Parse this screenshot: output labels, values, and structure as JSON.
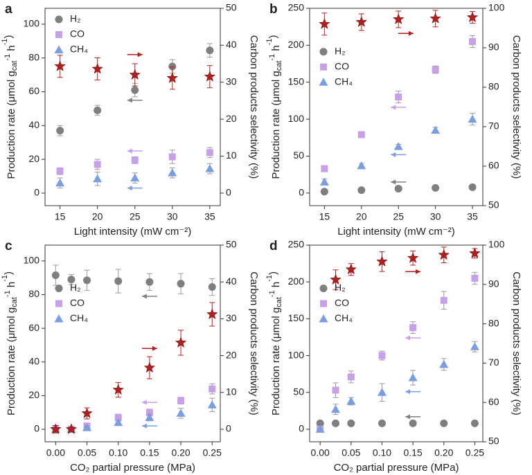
{
  "chart_data": [
    {
      "type": "scatter",
      "panel": "a",
      "xlabel": "Light intensity (mW cm⁻²)",
      "ylabel": [
        "Production rate  (μmol g",
        "cat",
        "-1",
        " h",
        "-1",
        ")"
      ],
      "y2label": "Carbon products selectivity (%)",
      "x": [
        15,
        20,
        25,
        30,
        35
      ],
      "xlim": [
        13,
        36.4
      ],
      "xticks": [
        15,
        20,
        25,
        30,
        35
      ],
      "ylim": [
        -7.4,
        109.4
      ],
      "yticks": [
        0,
        20,
        40,
        60,
        80,
        100
      ],
      "y2lim": [
        -3.4,
        50
      ],
      "y2ticks": [
        0,
        10,
        20,
        30,
        40,
        50
      ],
      "legend": "upper left",
      "series": [
        {
          "name": "H₂",
          "color": "#7f7f7f",
          "marker": "circle",
          "values": [
            37,
            49,
            61,
            75,
            84.5
          ],
          "errors": [
            3,
            3,
            4,
            4,
            4
          ]
        },
        {
          "name": "CO",
          "color": "#c7a0ea",
          "marker": "square",
          "values": [
            13,
            17,
            19.5,
            21.5,
            24
          ],
          "errors": [
            2,
            3,
            2,
            4,
            3
          ]
        },
        {
          "name": "CH₄",
          "color": "#7b9de2",
          "marker": "triangle",
          "values": [
            6,
            8.5,
            9,
            12,
            14.5
          ],
          "errors": [
            3,
            4,
            3,
            3,
            3
          ]
        },
        {
          "color": "#b0201e",
          "marker": "star",
          "axis": "y2",
          "values": [
            34.3,
            33.6,
            32,
            31.1,
            31.5
          ],
          "errors": [
            3,
            3,
            3,
            3,
            3
          ]
        }
      ]
    },
    {
      "type": "scatter",
      "panel": "b",
      "xlabel": "Light intensity (mW cm⁻²)",
      "ylabel": [
        "Production rate  (μmol g",
        "cat",
        "-1",
        " h",
        "-1",
        ")"
      ],
      "y2label": "Carbon products selectivity (%)",
      "x": [
        15,
        20,
        25,
        30,
        35
      ],
      "xlim": [
        13,
        36.4
      ],
      "xticks": [
        15,
        20,
        25,
        30,
        35
      ],
      "ylim": [
        -17,
        250
      ],
      "yticks": [
        0,
        50,
        100,
        150,
        200,
        250
      ],
      "y2lim": [
        50,
        100
      ],
      "y2ticks": [
        50,
        60,
        70,
        80,
        90,
        100
      ],
      "legend": "center left",
      "series": [
        {
          "name": "H₂",
          "color": "#7f7f7f",
          "marker": "circle",
          "values": [
            2,
            4,
            6,
            7,
            8
          ],
          "errors": [
            1,
            1,
            1,
            1,
            1
          ]
        },
        {
          "name": "CO",
          "color": "#c7a0ea",
          "marker": "square",
          "values": [
            33,
            79,
            130,
            167,
            205
          ],
          "errors": [
            4,
            4,
            8,
            5,
            8
          ]
        },
        {
          "name": "CH₄",
          "color": "#7b9de2",
          "marker": "triangle",
          "values": [
            15,
            37,
            63,
            85,
            100
          ],
          "errors": [
            4,
            3,
            3,
            4,
            8
          ]
        },
        {
          "color": "#b0201e",
          "marker": "star",
          "axis": "y2",
          "values": [
            96,
            96.5,
            97.2,
            97.4,
            97.7
          ],
          "errors": [
            2.8,
            2.1,
            2.1,
            2.1,
            1.5
          ]
        }
      ]
    },
    {
      "type": "scatter",
      "panel": "c",
      "xlabel": "CO₂ partial pressure (MPa)",
      "ylabel": [
        "Production rate  (μmol g",
        "cat",
        "-1",
        " h",
        "-1",
        ")"
      ],
      "y2label": "Carbon products selectivity (%)",
      "x": [
        0,
        0.025,
        0.05,
        0.1,
        0.15,
        0.2,
        0.25
      ],
      "xlim": [
        -0.017,
        0.263
      ],
      "xticks": [
        {
          "value": 0,
          "label": "0.00"
        },
        0.05,
        {
          "value": 0.1,
          "label": "0.10"
        },
        0.15,
        {
          "value": 0.2,
          "label": "0.20"
        },
        0.25
      ],
      "ylim": [
        -7.4,
        109.4
      ],
      "yticks": [
        0,
        20,
        40,
        60,
        80,
        100
      ],
      "y2lim": [
        -3.4,
        50
      ],
      "y2ticks": [
        0,
        10,
        20,
        30,
        40,
        50
      ],
      "legend": "center left",
      "series": [
        {
          "name": "H₂",
          "color": "#7f7f7f",
          "marker": "circle",
          "values": [
            91.5,
            89,
            88.5,
            88,
            87.5,
            86.5,
            84.5
          ],
          "errors": [
            6,
            3,
            6,
            7,
            5,
            6,
            5
          ]
        },
        {
          "name": "CO",
          "color": "#c7a0ea",
          "marker": "square",
          "values": [
            0.5,
            0,
            2,
            7,
            10,
            17,
            24
          ],
          "errors": [
            1,
            1,
            1,
            2,
            2,
            2,
            3
          ]
        },
        {
          "name": "CH₄",
          "color": "#7b9de2",
          "marker": "triangle",
          "values": [
            0,
            0,
            1,
            4,
            7,
            9.5,
            14.5
          ],
          "errors": [
            0.5,
            0.5,
            1,
            1,
            2,
            3,
            4
          ]
        },
        {
          "color": "#b0201e",
          "marker": "star",
          "axis": "y2",
          "values": [
            0,
            0,
            4.3,
            10.7,
            16.7,
            23.5,
            31.2
          ],
          "errors": [
            1,
            0.5,
            1.5,
            2,
            3,
            3.4,
            3.2
          ]
        }
      ]
    },
    {
      "type": "scatter",
      "panel": "d",
      "xlabel": "CO₂ partial pressure (MPa)",
      "ylabel": [
        "Production rate  (μmol g",
        "cat",
        "-1",
        " h",
        "-1",
        ")"
      ],
      "y2label": "Carbon products selectivity (%)",
      "x": [
        0,
        0.025,
        0.05,
        0.1,
        0.15,
        0.2,
        0.25
      ],
      "xlim": [
        -0.017,
        0.263
      ],
      "xticks": [
        {
          "value": 0,
          "label": "0.00"
        },
        0.05,
        {
          "value": 0.1,
          "label": "0.10"
        },
        0.15,
        {
          "value": 0.2,
          "label": "0.20"
        },
        0.25
      ],
      "ylim": [
        -17,
        250
      ],
      "yticks": [
        0,
        50,
        100,
        150,
        200,
        250
      ],
      "y2lim": [
        50,
        100
      ],
      "y2ticks": [
        50,
        60,
        70,
        80,
        90,
        100
      ],
      "legend": "center left",
      "series": [
        {
          "name": "H₂",
          "color": "#7f7f7f",
          "marker": "circle",
          "values": [
            8,
            8,
            8,
            8,
            8,
            8,
            8
          ],
          "errors": [
            1,
            1,
            1,
            1,
            1,
            1,
            1
          ]
        },
        {
          "name": "CO",
          "color": "#c7a0ea",
          "marker": "square",
          "values": [
            0,
            53,
            71,
            100,
            138,
            175,
            205
          ],
          "errors": [
            1,
            10,
            8,
            6,
            8,
            12,
            8
          ]
        },
        {
          "name": "CH₄",
          "color": "#7b9de2",
          "marker": "triangle",
          "values": [
            0,
            27,
            38,
            50,
            70,
            88,
            112
          ],
          "errors": [
            1,
            7,
            5,
            12,
            10,
            8,
            7
          ]
        },
        {
          "color": "#b0201e",
          "marker": "star",
          "axis": "y2",
          "values": [
            null,
            91.2,
            93.8,
            95.8,
            96.7,
            97.5,
            97.9
          ],
          "errors": [
            null,
            2.5,
            1.5,
            2.5,
            1.8,
            2,
            1.2
          ]
        }
      ]
    }
  ]
}
